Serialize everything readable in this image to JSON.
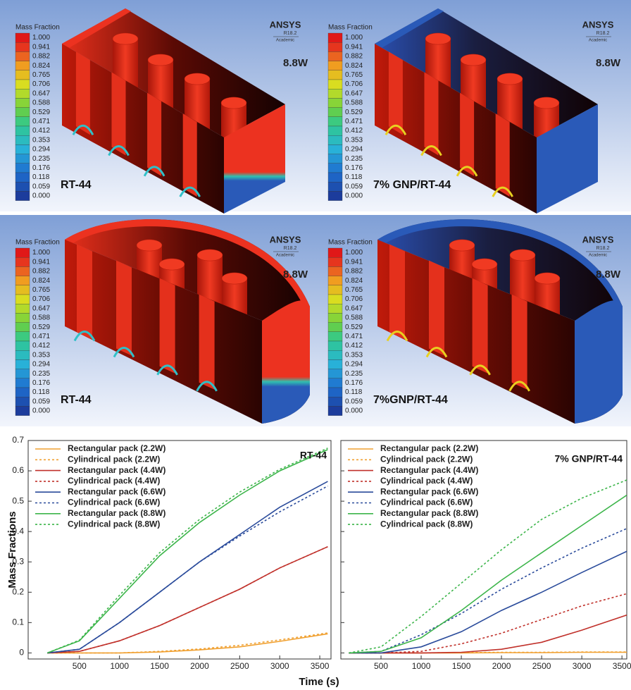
{
  "colorbar": {
    "title": "Mass Fraction",
    "labels": [
      "1.000",
      "0.941",
      "0.882",
      "0.824",
      "0.765",
      "0.706",
      "0.647",
      "0.588",
      "0.529",
      "0.471",
      "0.412",
      "0.353",
      "0.294",
      "0.235",
      "0.176",
      "0.118",
      "0.059",
      "0.000"
    ]
  },
  "panels": [
    {
      "shape": "rectangular",
      "brand": "ANSYS",
      "version": "R18.2",
      "edition": "Academic",
      "power": "8.8W",
      "label": "RT-44"
    },
    {
      "shape": "rectangular",
      "brand": "ANSYS",
      "version": "R18.2",
      "edition": "Academic",
      "power": "8.8W",
      "label": "7% GNP/RT-44"
    },
    {
      "shape": "cylindrical",
      "brand": "ANSYS",
      "version": "R18.2",
      "edition": "Academic",
      "power": "8.8W",
      "label": "RT-44"
    },
    {
      "shape": "cylindrical",
      "brand": "ANSYS",
      "version": "R18.2",
      "edition": "Academic",
      "power": "8.8W",
      "label": "7%GNP/RT-44"
    }
  ],
  "chart_data": [
    {
      "type": "line",
      "title": "RT-44",
      "xlabel": "Time (s)",
      "ylabel": "Mass Fractions",
      "legend": "upper left",
      "x": [
        100,
        500,
        1000,
        1500,
        2000,
        2500,
        3000,
        3600
      ],
      "xlim": [
        -140,
        3640
      ],
      "xticks": [
        500,
        1000,
        1500,
        2000,
        2500,
        3000,
        3500
      ],
      "ylim": [
        -0.02,
        0.7
      ],
      "yticks": [
        0,
        0.1,
        0.2,
        0.3,
        0.4,
        0.5,
        0.6,
        0.7
      ],
      "ytick_labels": true,
      "series": [
        {
          "name": "Rectangular pack (2.2W)",
          "color": "#f0a030",
          "linestyle": "solid",
          "values": [
            0,
            0,
            0,
            0.003,
            0.01,
            0.02,
            0.038,
            0.063
          ]
        },
        {
          "name": "Cylindrical pack (2.2W)",
          "color": "#f0a030",
          "linestyle": "dashed",
          "values": [
            0,
            0,
            0,
            0.005,
            0.013,
            0.025,
            0.043,
            0.066
          ]
        },
        {
          "name": "Rectangular pack (4.4W)",
          "color": "#c0302a",
          "linestyle": "solid",
          "values": [
            0,
            0.005,
            0.04,
            0.09,
            0.15,
            0.21,
            0.28,
            0.35
          ]
        },
        {
          "name": "Cylindrical pack (4.4W)",
          "color": "#c0302a",
          "linestyle": "dashed",
          "values": [
            0,
            0.005,
            0.04,
            0.09,
            0.15,
            0.21,
            0.28,
            0.35
          ]
        },
        {
          "name": "Rectangular pack (6.6W)",
          "color": "#2a4b9b",
          "linestyle": "solid",
          "values": [
            0,
            0.012,
            0.1,
            0.2,
            0.3,
            0.39,
            0.48,
            0.565
          ]
        },
        {
          "name": "Cylindrical pack (6.6W)",
          "color": "#2a4b9b",
          "linestyle": "dashed",
          "values": [
            0,
            0.012,
            0.1,
            0.2,
            0.3,
            0.385,
            0.465,
            0.55
          ]
        },
        {
          "name": "Rectangular pack (8.8W)",
          "color": "#3cb54a",
          "linestyle": "solid",
          "values": [
            0,
            0.04,
            0.18,
            0.32,
            0.43,
            0.52,
            0.6,
            0.67
          ]
        },
        {
          "name": "Cylindrical pack (8.8W)",
          "color": "#3cb54a",
          "linestyle": "dashed",
          "values": [
            0,
            0.042,
            0.19,
            0.33,
            0.44,
            0.53,
            0.605,
            0.675
          ]
        }
      ]
    },
    {
      "type": "line",
      "title": "7% GNP/RT-44",
      "legend": "upper left",
      "x": [
        100,
        500,
        1000,
        1500,
        2000,
        2500,
        3000,
        3560
      ],
      "xlim": [
        0,
        3560
      ],
      "xticks": [
        500,
        1000,
        1500,
        2000,
        2500,
        3000,
        3500
      ],
      "ylim": [
        -0.02,
        0.7
      ],
      "yticks": [
        0,
        0.1,
        0.2,
        0.3,
        0.4,
        0.5,
        0.6,
        0.7
      ],
      "ytick_labels": false,
      "series": [
        {
          "name": "Rectangular pack (2.2W)",
          "color": "#f0a030",
          "linestyle": "solid",
          "values": [
            0,
            0,
            0,
            0,
            0.001,
            0.001,
            0.002,
            0.002
          ]
        },
        {
          "name": "Cylindrical pack (2.2W)",
          "color": "#f0a030",
          "linestyle": "dashed",
          "values": [
            0,
            0,
            0,
            0.001,
            0.002,
            0.002,
            0.003,
            0.003
          ]
        },
        {
          "name": "Rectangular pack (4.4W)",
          "color": "#c0302a",
          "linestyle": "solid",
          "values": [
            0,
            0,
            0,
            0.002,
            0.012,
            0.035,
            0.075,
            0.125
          ]
        },
        {
          "name": "Cylindrical pack (4.4W)",
          "color": "#c0302a",
          "linestyle": "dashed",
          "values": [
            0,
            0,
            0.005,
            0.03,
            0.065,
            0.11,
            0.155,
            0.195
          ]
        },
        {
          "name": "Rectangular pack (6.6W)",
          "color": "#2a4b9b",
          "linestyle": "solid",
          "values": [
            0,
            0,
            0.02,
            0.07,
            0.14,
            0.2,
            0.265,
            0.335
          ]
        },
        {
          "name": "Cylindrical pack (6.6W)",
          "color": "#2a4b9b",
          "linestyle": "dashed",
          "values": [
            0,
            0.005,
            0.06,
            0.13,
            0.21,
            0.28,
            0.345,
            0.41
          ]
        },
        {
          "name": "Rectangular pack (8.8W)",
          "color": "#3cb54a",
          "linestyle": "solid",
          "values": [
            0,
            0.005,
            0.05,
            0.14,
            0.24,
            0.33,
            0.42,
            0.52
          ]
        },
        {
          "name": "Cylindrical pack (8.8W)",
          "color": "#3cb54a",
          "linestyle": "dashed",
          "values": [
            0,
            0.02,
            0.12,
            0.23,
            0.34,
            0.44,
            0.51,
            0.57
          ]
        }
      ]
    }
  ]
}
